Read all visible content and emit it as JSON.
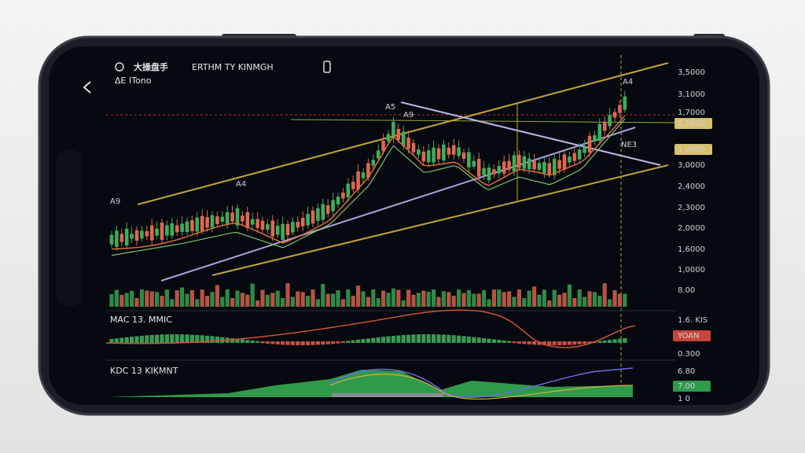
{
  "header": {
    "title": "大操盘手",
    "subtitle": "ERTHM TY KINMGH",
    "caption": "ΔE ITono"
  },
  "annotations": [
    "A9",
    "A4",
    "A5",
    "A9",
    "A4",
    "NE3"
  ],
  "price_axis": [
    "3,5000",
    "3,1000",
    "1,7000",
    "8,1000",
    "1 0000",
    "3,0000",
    "2,4000",
    "2,3000",
    "2,0000",
    "1,6000",
    "1,0000",
    "8.00"
  ],
  "macd_panel": {
    "title": "MAC 13. MMIC",
    "labels": [
      "1.6. KIS",
      "YOAN",
      "0.300"
    ]
  },
  "kdj_panel": {
    "title": "KDC 13 KIKMNT",
    "labels": [
      "6.80",
      "7.00",
      "1 0"
    ]
  }
}
